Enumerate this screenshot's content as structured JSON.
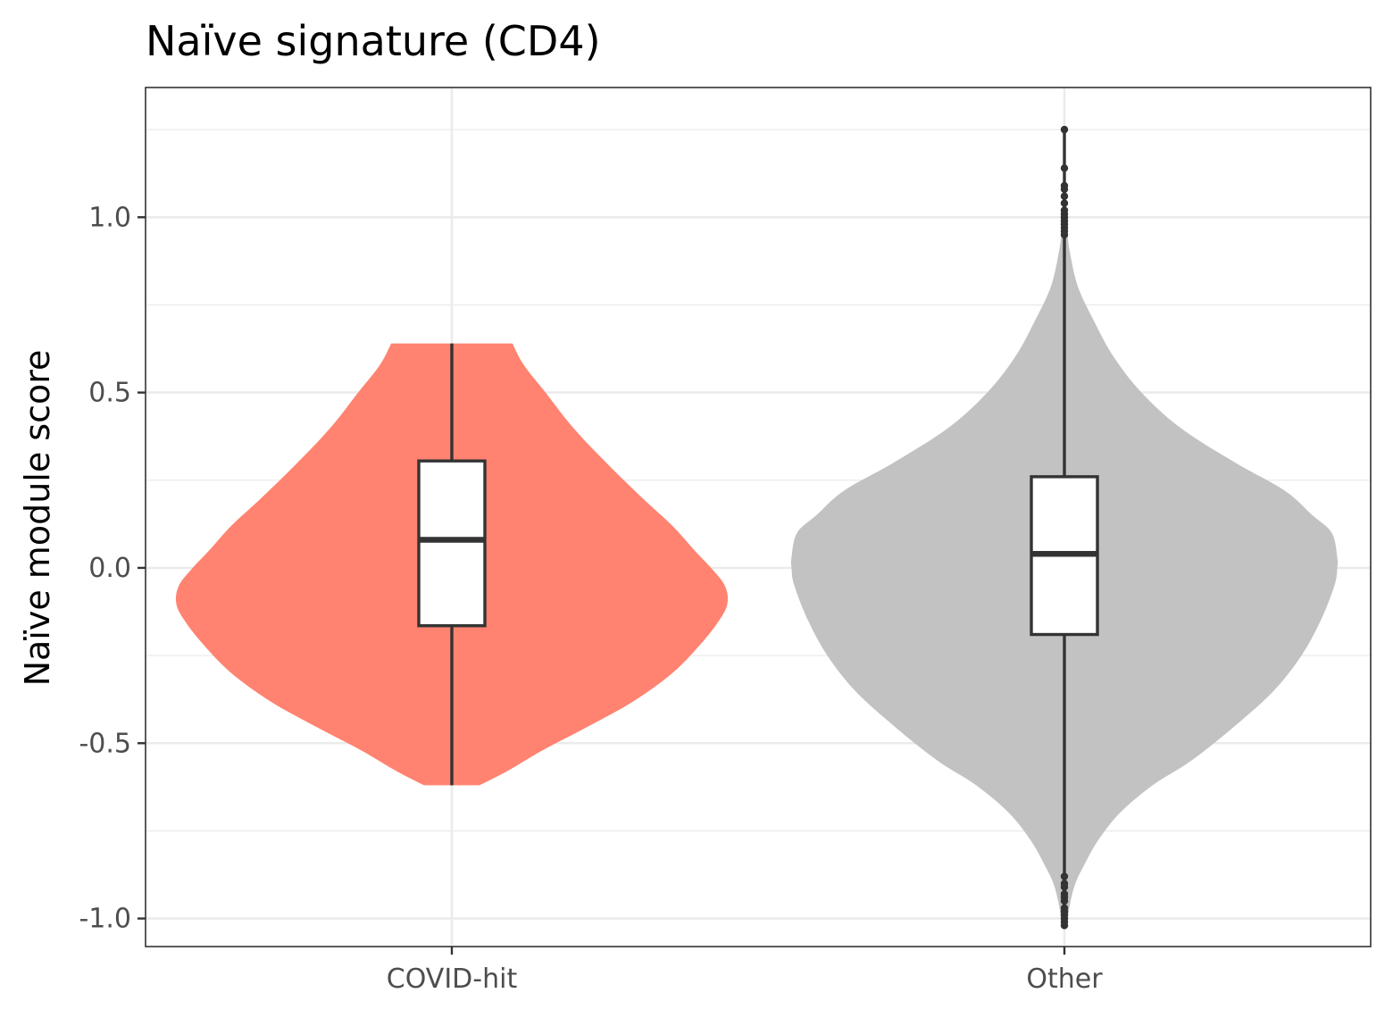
{
  "chart_data": {
    "type": "violin",
    "title": "Naïve signature (CD4)",
    "xlabel": "",
    "ylabel": "Naïve module score",
    "categories": [
      "COVID-hit",
      "Other"
    ],
    "ylim": [
      -1.08,
      1.37
    ],
    "yticks": [
      -1.0,
      -0.5,
      0.0,
      0.5,
      1.0
    ],
    "ytick_labels": [
      "-1.0",
      "-0.5",
      "0.0",
      "0.5",
      "1.0"
    ],
    "grid": true,
    "legend": "none",
    "colors": {
      "COVID-hit": "#FF8370",
      "Other": "#C2C2C2",
      "box_fill": "#FFFFFF",
      "box_line": "#333333",
      "grid": "#EBEBEB",
      "panel_border": "#333333"
    },
    "groups": [
      {
        "name": "COVID-hit",
        "min": -0.62,
        "q1": -0.165,
        "median": 0.08,
        "q3": 0.305,
        "max": 0.64,
        "outliers": [],
        "density": [
          [
            -0.62,
            0.1
          ],
          [
            -0.58,
            0.2
          ],
          [
            -0.52,
            0.33
          ],
          [
            -0.45,
            0.5
          ],
          [
            -0.38,
            0.66
          ],
          [
            -0.3,
            0.8
          ],
          [
            -0.22,
            0.9
          ],
          [
            -0.15,
            0.97
          ],
          [
            -0.1,
            1.0
          ],
          [
            -0.05,
            0.99
          ],
          [
            0.0,
            0.94
          ],
          [
            0.05,
            0.88
          ],
          [
            0.12,
            0.8
          ],
          [
            0.2,
            0.69
          ],
          [
            0.3,
            0.56
          ],
          [
            0.4,
            0.44
          ],
          [
            0.5,
            0.34
          ],
          [
            0.58,
            0.26
          ],
          [
            0.64,
            0.22
          ]
        ]
      },
      {
        "name": "Other",
        "min": -1.02,
        "q1": -0.19,
        "median": 0.04,
        "q3": 0.26,
        "max": 1.25,
        "outliers": [
          1.25,
          1.14,
          1.09,
          1.08,
          1.06,
          1.04,
          1.02,
          1.01,
          1.0,
          0.99,
          0.98,
          0.97,
          0.96,
          0.95,
          -0.88,
          -0.9,
          -0.91,
          -0.93,
          -0.94,
          -0.95,
          -0.97,
          -0.98,
          -0.99,
          -1.0,
          -1.01,
          -1.02
        ],
        "density": [
          [
            -1.02,
            0.01
          ],
          [
            -0.96,
            0.02
          ],
          [
            -0.9,
            0.04
          ],
          [
            -0.85,
            0.07
          ],
          [
            -0.78,
            0.12
          ],
          [
            -0.7,
            0.2
          ],
          [
            -0.62,
            0.32
          ],
          [
            -0.55,
            0.46
          ],
          [
            -0.45,
            0.62
          ],
          [
            -0.35,
            0.76
          ],
          [
            -0.25,
            0.86
          ],
          [
            -0.15,
            0.93
          ],
          [
            -0.05,
            0.98
          ],
          [
            0.0,
            0.99
          ],
          [
            0.03,
            0.99
          ],
          [
            0.1,
            0.97
          ],
          [
            0.15,
            0.9
          ],
          [
            0.22,
            0.8
          ],
          [
            0.3,
            0.62
          ],
          [
            0.4,
            0.42
          ],
          [
            0.5,
            0.28
          ],
          [
            0.6,
            0.18
          ],
          [
            0.7,
            0.11
          ],
          [
            0.8,
            0.05
          ],
          [
            0.9,
            0.02
          ],
          [
            0.96,
            0.01
          ]
        ]
      }
    ]
  }
}
